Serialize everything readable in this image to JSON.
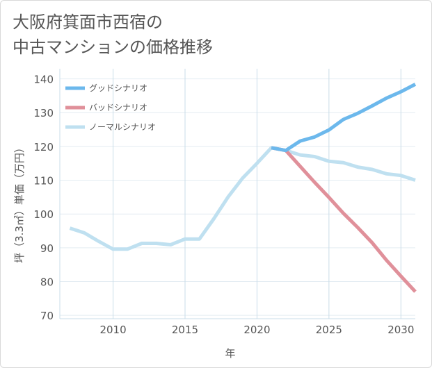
{
  "title_line1": "大阪府箕面市西宿の",
  "title_line2": "中古マンションの価格推移",
  "chart_data": {
    "type": "line",
    "xlabel": "年",
    "ylabel": "坪（3.3㎡）単価（万円）",
    "xlim": [
      2006.3,
      2031
    ],
    "ylim": [
      69,
      143
    ],
    "x_ticks": [
      2010,
      2015,
      2020,
      2025,
      2030
    ],
    "y_ticks": [
      70,
      80,
      90,
      100,
      110,
      120,
      130,
      140
    ],
    "grid": true,
    "legend_position": "top-left",
    "series": [
      {
        "name": "グッドシナリオ",
        "color": "#6cb8ec",
        "x": [
          2021,
          2022,
          2023,
          2024,
          2025,
          2026,
          2027,
          2028,
          2029,
          2030,
          2031
        ],
        "y": [
          119.6,
          118.8,
          121.6,
          122.8,
          124.9,
          128.0,
          129.8,
          132.0,
          134.3,
          136.2,
          138.4
        ]
      },
      {
        "name": "バッドシナリオ",
        "color": "#e0909a",
        "x": [
          2021,
          2022,
          2023,
          2024,
          2025,
          2026,
          2027,
          2028,
          2029,
          2030,
          2031
        ],
        "y": [
          119.6,
          118.8,
          114.1,
          109.4,
          104.9,
          100.2,
          96.0,
          91.5,
          86.3,
          81.6,
          77.0
        ]
      },
      {
        "name": "ノーマルシナリオ",
        "color": "#bfe0f0",
        "x": [
          2007,
          2008,
          2009,
          2010,
          2011,
          2012,
          2013,
          2014,
          2015,
          2016,
          2017,
          2018,
          2019,
          2020,
          2021,
          2022,
          2023,
          2024,
          2025,
          2026,
          2027,
          2028,
          2029,
          2030,
          2031
        ],
        "y": [
          95.8,
          94.4,
          91.9,
          89.6,
          89.6,
          91.3,
          91.3,
          90.9,
          92.6,
          92.6,
          98.6,
          105.1,
          110.6,
          115.0,
          119.6,
          118.8,
          117.5,
          117.0,
          115.6,
          115.2,
          113.9,
          113.2,
          111.9,
          111.4,
          110.0
        ]
      }
    ]
  }
}
